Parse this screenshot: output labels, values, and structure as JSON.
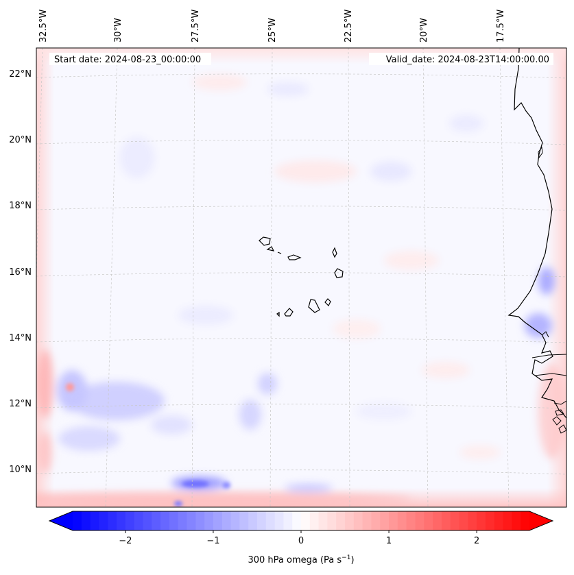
{
  "map": {
    "start_date_label": "Start date: 2024-08-23_00:00:00",
    "valid_date_label": "Valid_date: 2024-08-23T14:00:00.00",
    "lon_labels": [
      "32.5°W",
      "30°W",
      "27.5°W",
      "25°W",
      "22.5°W",
      "20°W",
      "17.5°W"
    ],
    "lat_labels": [
      "22°N",
      "20°N",
      "18°N",
      "16°N",
      "14°N",
      "12°N",
      "10°N"
    ],
    "field": "300 hPa omega",
    "colormap": "bwr",
    "value_range": [
      -2.6,
      2.6
    ]
  },
  "colorbar": {
    "label": "300 hPa omega (Pa s",
    "label_exponent": "−1",
    "label_close": ")",
    "ticks": [
      "−2",
      "−1",
      "0",
      "1",
      "2"
    ],
    "tick_values": [
      -2,
      -1,
      0,
      1,
      2
    ],
    "min": -2.6,
    "max": 2.6,
    "extend": "both",
    "colors": {
      "negative_end": "#0000ff",
      "center": "#ffffff",
      "positive_end": "#ff0000"
    }
  }
}
